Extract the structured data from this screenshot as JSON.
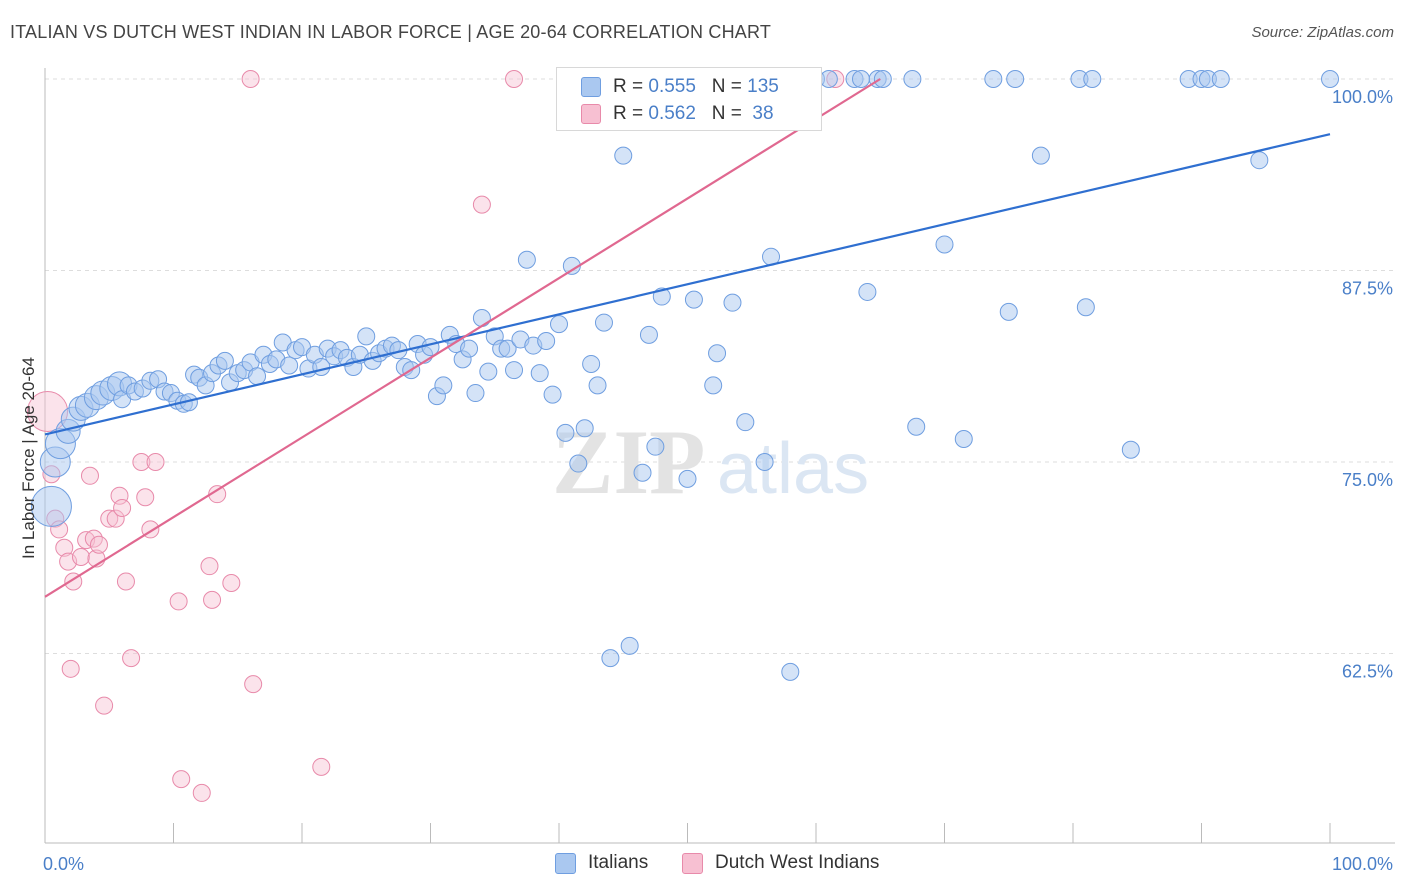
{
  "title": "ITALIAN VS DUTCH WEST INDIAN IN LABOR FORCE | AGE 20-64 CORRELATION CHART",
  "source": "Source: ZipAtlas.com",
  "watermark": {
    "zip": "ZIP",
    "atlas": "atlas"
  },
  "colors": {
    "italians_fill": "#aac8f0",
    "italians_stroke": "#6f9ee0",
    "italians_line": "#2f6fd0",
    "dutch_fill": "#f7c0d2",
    "dutch_stroke": "#e88aaa",
    "dutch_line": "#e06890",
    "axis_label": "#4a7fc8",
    "grid": "#dddddd"
  },
  "legend_top": {
    "rows": [
      {
        "r_label": "R = ",
        "r_value": "0.555",
        "n_label": "N = ",
        "n_value": "135",
        "series": "italians"
      },
      {
        "r_label": "R = ",
        "r_value": "0.562",
        "n_label": "N = ",
        "n_value": " 38",
        "series": "dutch"
      }
    ]
  },
  "legend_bottom": {
    "italians": "Italians",
    "dutch": "Dutch West Indians"
  },
  "chart_data": {
    "type": "scatter",
    "title": "ITALIAN VS DUTCH WEST INDIAN IN LABOR FORCE | AGE 20-64 CORRELATION CHART",
    "xlabel": "",
    "ylabel": "In Labor Force | Age 20-64",
    "xlim": [
      0,
      100
    ],
    "ylim": [
      50,
      101
    ],
    "x_tick_labels": {
      "left": "0.0%",
      "right": "100.0%"
    },
    "y_ticks": [
      62.5,
      75.0,
      87.5,
      100.0
    ],
    "y_tick_labels": [
      "62.5%",
      "75.0%",
      "87.5%",
      "100.0%"
    ],
    "series": [
      {
        "name": "Italians",
        "trend": {
          "x": [
            0,
            100
          ],
          "y": [
            76.8,
            96.4
          ]
        },
        "points": [
          [
            0.5,
            72.1,
            5
          ],
          [
            0.8,
            75.0,
            4
          ],
          [
            1.2,
            76.2,
            4
          ],
          [
            1.8,
            77.0,
            3
          ],
          [
            2.2,
            77.8,
            3
          ],
          [
            2.8,
            78.5,
            3
          ],
          [
            3.3,
            78.7,
            3
          ],
          [
            4.0,
            79.2,
            3
          ],
          [
            4.5,
            79.5,
            3
          ],
          [
            5.2,
            79.8,
            3
          ],
          [
            5.8,
            80.1,
            3
          ],
          [
            6.0,
            79.1,
            2
          ],
          [
            6.5,
            80.0,
            2
          ],
          [
            7.0,
            79.6,
            2
          ],
          [
            7.6,
            79.8,
            2
          ],
          [
            8.2,
            80.3,
            2
          ],
          [
            8.8,
            80.4,
            2
          ],
          [
            9.3,
            79.6,
            2
          ],
          [
            9.8,
            79.5,
            2
          ],
          [
            10.3,
            79.0,
            2
          ],
          [
            10.8,
            78.8,
            2
          ],
          [
            11.2,
            78.9,
            2
          ],
          [
            11.6,
            80.7,
            2
          ],
          [
            12.0,
            80.5,
            2
          ],
          [
            12.5,
            80.0,
            2
          ],
          [
            13.0,
            80.8,
            2
          ],
          [
            13.5,
            81.3,
            2
          ],
          [
            14.0,
            81.6,
            2
          ],
          [
            14.4,
            80.2,
            2
          ],
          [
            15.0,
            80.8,
            2
          ],
          [
            15.5,
            81.0,
            2
          ],
          [
            16.0,
            81.5,
            2
          ],
          [
            16.5,
            80.6,
            2
          ],
          [
            17.0,
            82.0,
            2
          ],
          [
            17.5,
            81.4,
            2
          ],
          [
            18.0,
            81.7,
            2
          ],
          [
            18.5,
            82.8,
            2
          ],
          [
            19.0,
            81.3,
            2
          ],
          [
            19.5,
            82.3,
            2
          ],
          [
            20.0,
            82.5,
            2
          ],
          [
            20.5,
            81.1,
            2
          ],
          [
            21.0,
            82.0,
            2
          ],
          [
            21.5,
            81.2,
            2
          ],
          [
            22.0,
            82.4,
            2
          ],
          [
            22.5,
            81.9,
            2
          ],
          [
            23.0,
            82.3,
            2
          ],
          [
            23.5,
            81.8,
            2
          ],
          [
            24.0,
            81.2,
            2
          ],
          [
            24.5,
            82.0,
            2
          ],
          [
            25.0,
            83.2,
            2
          ],
          [
            25.5,
            81.6,
            2
          ],
          [
            26.0,
            82.1,
            2
          ],
          [
            26.5,
            82.4,
            2
          ],
          [
            27.0,
            82.6,
            2
          ],
          [
            27.5,
            82.3,
            2
          ],
          [
            28.0,
            81.2,
            2
          ],
          [
            28.5,
            81.0,
            2
          ],
          [
            29.0,
            82.7,
            2
          ],
          [
            29.5,
            82.0,
            2
          ],
          [
            30.0,
            82.5,
            2
          ],
          [
            30.5,
            79.3,
            2
          ],
          [
            31.0,
            80.0,
            2
          ],
          [
            31.5,
            83.3,
            2
          ],
          [
            32.0,
            82.7,
            2
          ],
          [
            32.5,
            81.7,
            2
          ],
          [
            33.0,
            82.4,
            2
          ],
          [
            33.5,
            79.5,
            2
          ],
          [
            34.0,
            84.4,
            2
          ],
          [
            34.5,
            80.9,
            2
          ],
          [
            35.0,
            83.2,
            2
          ],
          [
            35.5,
            82.4,
            2
          ],
          [
            36.0,
            82.4,
            2
          ],
          [
            36.5,
            81.0,
            2
          ],
          [
            37.0,
            83.0,
            2
          ],
          [
            37.5,
            88.2,
            2
          ],
          [
            38.0,
            82.6,
            2
          ],
          [
            38.5,
            80.8,
            2
          ],
          [
            39.0,
            82.9,
            2
          ],
          [
            39.5,
            79.4,
            2
          ],
          [
            40.0,
            84.0,
            2
          ],
          [
            40.5,
            76.9,
            2
          ],
          [
            41.0,
            87.8,
            2
          ],
          [
            41.5,
            74.9,
            2
          ],
          [
            42.0,
            77.2,
            2
          ],
          [
            42.5,
            81.4,
            2
          ],
          [
            43.0,
            80.0,
            2
          ],
          [
            43.5,
            84.1,
            2
          ],
          [
            44.0,
            62.2,
            2
          ],
          [
            45.0,
            95.0,
            2
          ],
          [
            45.5,
            63.0,
            2
          ],
          [
            46.5,
            74.3,
            2
          ],
          [
            47.0,
            83.3,
            2
          ],
          [
            47.5,
            76.0,
            2
          ],
          [
            47.8,
            99.9,
            2
          ],
          [
            48.0,
            85.8,
            2
          ],
          [
            49.0,
            100.0,
            2
          ],
          [
            50.0,
            73.9,
            2
          ],
          [
            50.5,
            85.6,
            2
          ],
          [
            51.0,
            100.0,
            2
          ],
          [
            52.0,
            80.0,
            2
          ],
          [
            52.3,
            82.1,
            2
          ],
          [
            52.7,
            100.0,
            2
          ],
          [
            53.5,
            85.4,
            2
          ],
          [
            54.0,
            100.0,
            2
          ],
          [
            54.5,
            77.6,
            2
          ],
          [
            55.5,
            100.0,
            2
          ],
          [
            56.0,
            75.0,
            2
          ],
          [
            56.5,
            88.4,
            2
          ],
          [
            57.0,
            100.0,
            2
          ],
          [
            58.0,
            61.3,
            2
          ],
          [
            60.0,
            100.0,
            2
          ],
          [
            61.0,
            100.0,
            2
          ],
          [
            63.0,
            100.0,
            2
          ],
          [
            63.5,
            100.0,
            2
          ],
          [
            64.0,
            86.1,
            2
          ],
          [
            64.8,
            100.0,
            2
          ],
          [
            65.2,
            100.0,
            2
          ],
          [
            67.5,
            100.0,
            2
          ],
          [
            67.8,
            77.3,
            2
          ],
          [
            70.0,
            89.2,
            2
          ],
          [
            71.5,
            76.5,
            2
          ],
          [
            75.0,
            84.8,
            2
          ],
          [
            75.5,
            100.0,
            2
          ],
          [
            77.5,
            95.0,
            2
          ],
          [
            80.5,
            100.0,
            2
          ],
          [
            81.0,
            85.1,
            2
          ],
          [
            81.5,
            100.0,
            2
          ],
          [
            84.5,
            75.8,
            2
          ],
          [
            89.0,
            100.0,
            2
          ],
          [
            90.0,
            100.0,
            2
          ],
          [
            90.5,
            100.0,
            2
          ],
          [
            91.5,
            100.0,
            2
          ],
          [
            94.5,
            94.7,
            2
          ],
          [
            100.0,
            100.0,
            2
          ],
          [
            73.8,
            100.0,
            2
          ]
        ]
      },
      {
        "name": "Dutch West Indians",
        "trend": {
          "x": [
            0,
            65
          ],
          "y": [
            66.2,
            100.0
          ]
        },
        "points": [
          [
            0.2,
            78.3,
            5
          ],
          [
            0.5,
            74.2,
            2
          ],
          [
            0.8,
            71.3,
            2
          ],
          [
            1.1,
            70.6,
            2
          ],
          [
            1.5,
            69.4,
            2
          ],
          [
            1.8,
            68.5,
            2
          ],
          [
            2.2,
            67.2,
            2
          ],
          [
            2.0,
            61.5,
            2
          ],
          [
            2.8,
            68.8,
            2
          ],
          [
            3.2,
            69.9,
            2
          ],
          [
            3.5,
            74.1,
            2
          ],
          [
            3.8,
            70.0,
            2
          ],
          [
            4.0,
            68.7,
            2
          ],
          [
            4.2,
            69.6,
            2
          ],
          [
            4.6,
            59.1,
            2
          ],
          [
            5.0,
            71.3,
            2
          ],
          [
            5.5,
            71.3,
            2
          ],
          [
            5.8,
            72.8,
            2
          ],
          [
            6.0,
            72.0,
            2
          ],
          [
            6.3,
            67.2,
            2
          ],
          [
            6.7,
            62.2,
            2
          ],
          [
            7.5,
            75.0,
            2
          ],
          [
            7.8,
            72.7,
            2
          ],
          [
            8.2,
            70.6,
            2
          ],
          [
            8.6,
            75.0,
            2
          ],
          [
            10.4,
            65.9,
            2
          ],
          [
            10.6,
            54.3,
            2
          ],
          [
            12.2,
            53.4,
            2
          ],
          [
            12.8,
            68.2,
            2
          ],
          [
            13.0,
            66.0,
            2
          ],
          [
            13.4,
            72.9,
            2
          ],
          [
            14.5,
            67.1,
            2
          ],
          [
            16.2,
            60.5,
            2
          ],
          [
            16.0,
            100.0,
            2
          ],
          [
            21.5,
            55.1,
            2
          ],
          [
            34.0,
            91.8,
            2
          ],
          [
            36.5,
            100.0,
            2
          ],
          [
            61.5,
            100.0,
            2
          ]
        ]
      }
    ]
  }
}
